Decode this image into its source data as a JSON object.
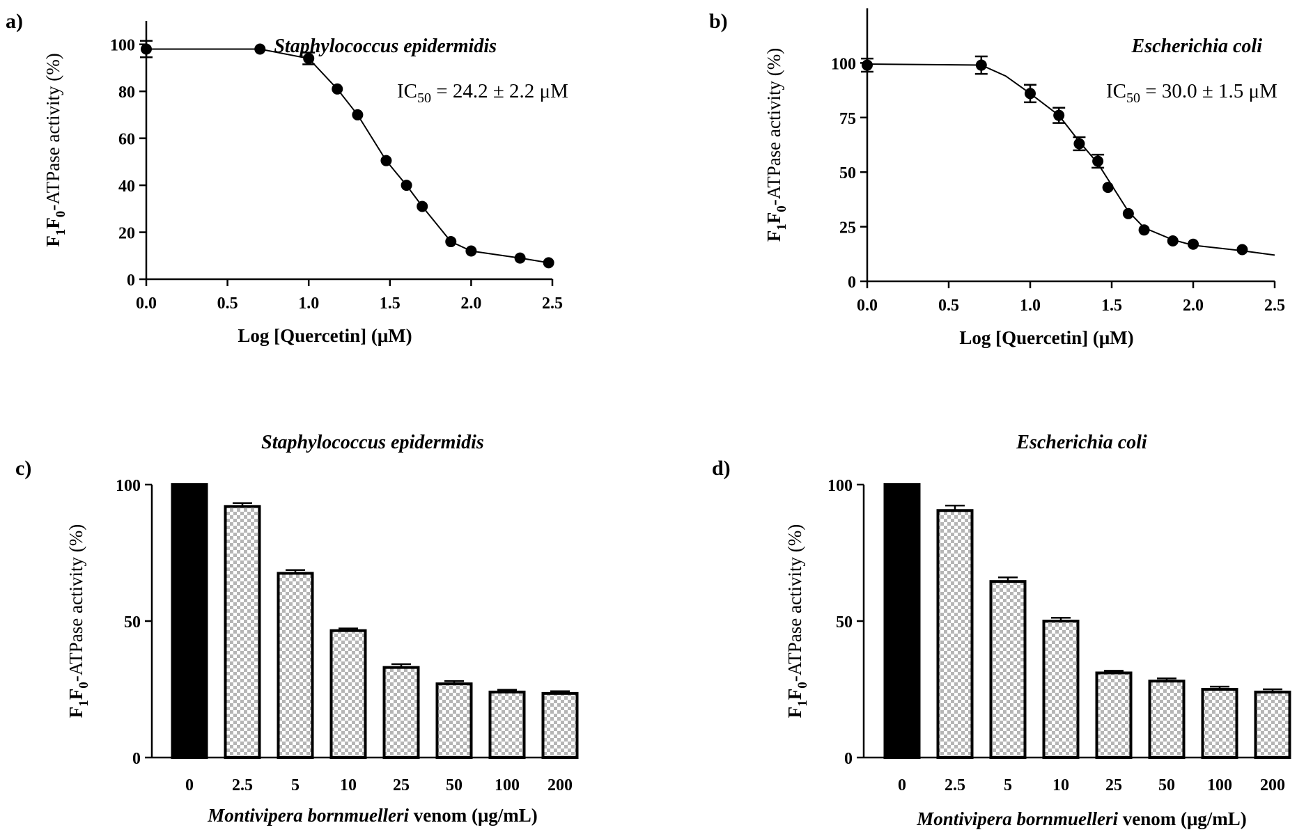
{
  "charts": [
    {
      "panel": "a)",
      "type": "line",
      "title": "Staphylococcus epidermidis",
      "annotation": {
        "prefix": "IC",
        "sub": "50",
        "suffix": " = 24.2 ± 2.2 μM"
      },
      "xlabel": "Log [Quercetin] (μM)",
      "ylabel": {
        "p1": "F",
        "s1": "1",
        "p2": "F",
        "s2": "0",
        "p3": "-ATPase activity (%)"
      },
      "xlim": [
        0,
        2.5
      ],
      "ylim": [
        0,
        110
      ],
      "xticks": [
        "0.0",
        "0.5",
        "1.0",
        "1.5",
        "2.0",
        "2.5"
      ],
      "yticks": [
        "0",
        "20",
        "40",
        "60",
        "80",
        "100"
      ],
      "x": [
        0,
        0.7,
        1.0,
        1.176,
        1.301,
        1.477,
        1.602,
        1.699,
        1.875,
        2.0,
        2.301,
        2.477
      ],
      "y": [
        98,
        98,
        94,
        81,
        70,
        50.5,
        40,
        31,
        16,
        12,
        9,
        7
      ],
      "err": [
        3.5,
        0,
        2.5,
        0,
        0,
        0,
        0,
        0,
        0,
        0,
        0,
        0
      ],
      "curve": [
        [
          0,
          98
        ],
        [
          0.7,
          98
        ],
        [
          1.0,
          94
        ],
        [
          1.176,
          81
        ],
        [
          1.301,
          70
        ],
        [
          1.477,
          50.5
        ],
        [
          1.602,
          40
        ],
        [
          1.699,
          31
        ],
        [
          1.875,
          16
        ],
        [
          2.0,
          12
        ],
        [
          2.301,
          9
        ],
        [
          2.477,
          7
        ]
      ]
    },
    {
      "panel": "b)",
      "type": "line",
      "title": "Escherichia coli",
      "annotation": {
        "prefix": "IC",
        "sub": "50",
        "suffix": " = 30.0 ± 1.5 μM"
      },
      "xlabel": "Log [Quercetin] (μM)",
      "ylabel": {
        "p1": "F",
        "s1": "1",
        "p2": "F",
        "s2": "0",
        "p3": "-ATPase activity (%)"
      },
      "xlim": [
        0,
        2.5
      ],
      "ylim": [
        0,
        125
      ],
      "xticks": [
        "0.0",
        "0.5",
        "1.0",
        "1.5",
        "2.0",
        "2.5"
      ],
      "yticks": [
        "0",
        "25",
        "50",
        "75",
        "100"
      ],
      "x": [
        0,
        0.7,
        1.0,
        1.176,
        1.301,
        1.415,
        1.477,
        1.602,
        1.699,
        1.875,
        2.0,
        2.301
      ],
      "y": [
        99,
        99,
        86,
        76,
        63,
        55,
        43,
        31,
        23.5,
        18.5,
        17,
        14.5
      ],
      "err": [
        3,
        4,
        4,
        3.5,
        3,
        3,
        0,
        0,
        0,
        0,
        0,
        0
      ],
      "curve": [
        [
          0,
          99.5
        ],
        [
          0.7,
          99
        ],
        [
          0.85,
          94
        ],
        [
          1.0,
          86
        ],
        [
          1.176,
          76
        ],
        [
          1.301,
          64
        ],
        [
          1.415,
          54
        ],
        [
          1.5,
          44
        ],
        [
          1.602,
          32
        ],
        [
          1.699,
          24.5
        ],
        [
          1.875,
          19
        ],
        [
          2.0,
          16.5
        ],
        [
          2.301,
          14
        ],
        [
          2.5,
          12
        ]
      ]
    },
    {
      "panel": "c)",
      "type": "bar",
      "title": "Staphylococcus epidermidis",
      "xlabel_italic": "Montivipera bornmuelleri",
      "xlabel_rest": " venom (μg/mL)",
      "ylabel": {
        "p1": "F",
        "s1": "1",
        "p2": "F",
        "s2": "0",
        "p3": "-ATPase activity (%)"
      },
      "ylim": [
        0,
        100
      ],
      "yticks": [
        "0",
        "50",
        "100"
      ],
      "categories": [
        "0",
        "2.5",
        "5",
        "10",
        "25",
        "50",
        "100",
        "200"
      ],
      "values": [
        100,
        92,
        67.5,
        46.5,
        33,
        27,
        24,
        23.5
      ],
      "err": [
        0,
        1.2,
        1.2,
        0.8,
        1.2,
        1.0,
        0.8,
        0.8
      ],
      "colors": {
        "control": "#000000",
        "pattern_light": "#ffffff",
        "pattern_dark": "#b5b5b5"
      }
    },
    {
      "panel": "d)",
      "type": "bar",
      "title": "Escherichia coli",
      "xlabel_italic": "Montivipera bornmuelleri",
      "xlabel_rest": " venom (μg/mL)",
      "ylabel": {
        "p1": "F",
        "s1": "1",
        "p2": "F",
        "s2": "0",
        "p3": "-ATPase activity (%)"
      },
      "ylim": [
        0,
        100
      ],
      "yticks": [
        "0",
        "50",
        "100"
      ],
      "categories": [
        "0",
        "2.5",
        "5",
        "10",
        "25",
        "50",
        "100",
        "200"
      ],
      "values": [
        100,
        90.5,
        64.5,
        50,
        31,
        28,
        25,
        24
      ],
      "err": [
        0,
        1.8,
        1.5,
        1.2,
        0.8,
        1.0,
        1.0,
        1.0
      ],
      "colors": {
        "control": "#000000",
        "pattern_light": "#ffffff",
        "pattern_dark": "#b5b5b5"
      }
    }
  ]
}
